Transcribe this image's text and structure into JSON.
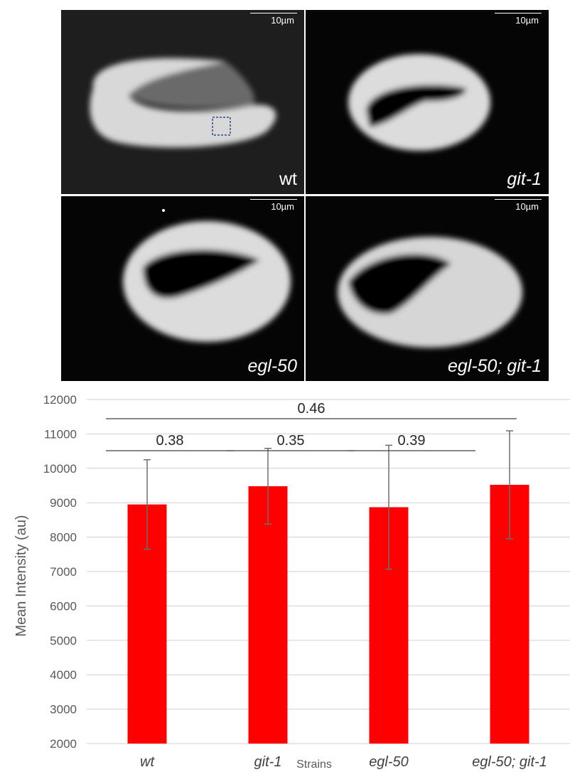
{
  "panels": [
    {
      "label": "wt",
      "italic": false,
      "scale": "10µm"
    },
    {
      "label": "git-1",
      "italic": true,
      "scale": "10µm"
    },
    {
      "label": "egl-50",
      "italic": true,
      "scale": "10µm"
    },
    {
      "label": "egl-50; git-1",
      "italic": true,
      "scale": "10µm"
    }
  ],
  "colors": {
    "bar": "#ff0000",
    "grid": "#d0d0d0",
    "axis_text": "#595959"
  },
  "chart_data": {
    "type": "bar",
    "categories": [
      "wt",
      "git-1",
      "egl-50",
      "egl-50; git-1"
    ],
    "values": [
      8950,
      9480,
      8870,
      9520
    ],
    "error": [
      1300,
      1100,
      1800,
      1570
    ],
    "xlabel": "Strains",
    "ylabel": "Mean Intensity (au)",
    "ylim": [
      2000,
      12000
    ],
    "yticks": [
      2000,
      3000,
      4000,
      5000,
      6000,
      7000,
      8000,
      9000,
      10000,
      11000,
      12000
    ],
    "grid": true,
    "comparisons": [
      {
        "between": [
          "wt",
          "git-1"
        ],
        "p": "0.38"
      },
      {
        "between": [
          "git-1",
          "egl-50"
        ],
        "p": "0.35"
      },
      {
        "between": [
          "egl-50",
          "egl-50; git-1"
        ],
        "p": "0.39"
      },
      {
        "between": [
          "wt",
          "egl-50; git-1"
        ],
        "p": "0.46"
      }
    ]
  }
}
